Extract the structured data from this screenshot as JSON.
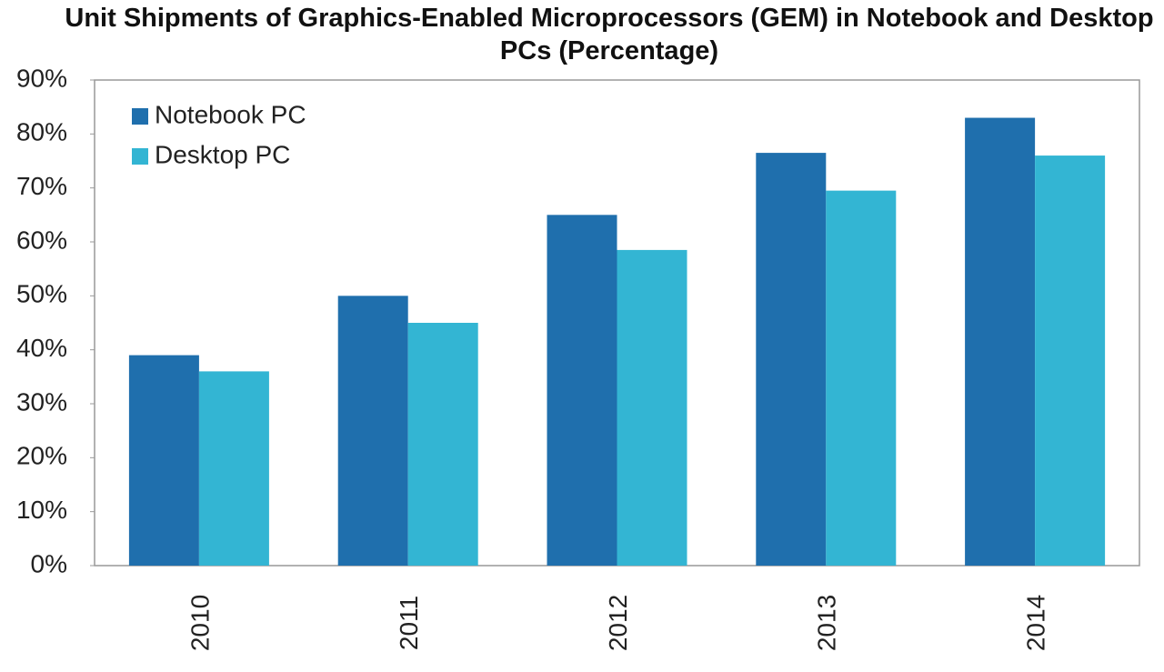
{
  "chart_data": {
    "type": "bar",
    "title": "Unit Shipments of Graphics-Enabled Microprocessors (GEM) in Notebook and Desktop PCs (Percentage)",
    "categories": [
      "2010",
      "2011",
      "2012",
      "2013",
      "2014"
    ],
    "series": [
      {
        "name": "Notebook PC",
        "color": "#1f6fad",
        "values": [
          39,
          50,
          65,
          76.5,
          83
        ]
      },
      {
        "name": "Desktop PC",
        "color": "#33b5d3",
        "values": [
          36,
          45,
          58.5,
          69.5,
          76
        ]
      }
    ],
    "ylim": [
      0,
      90
    ],
    "yticks": [
      {
        "value": 0,
        "label": "0%"
      },
      {
        "value": 10,
        "label": "10%"
      },
      {
        "value": 20,
        "label": "20%"
      },
      {
        "value": 30,
        "label": "30%"
      },
      {
        "value": 40,
        "label": "40%"
      },
      {
        "value": 50,
        "label": "50%"
      },
      {
        "value": 60,
        "label": "60%"
      },
      {
        "value": 70,
        "label": "70%"
      },
      {
        "value": 80,
        "label": "80%"
      },
      {
        "value": 90,
        "label": "90%"
      }
    ],
    "grid": false,
    "legend": "upper-left"
  }
}
